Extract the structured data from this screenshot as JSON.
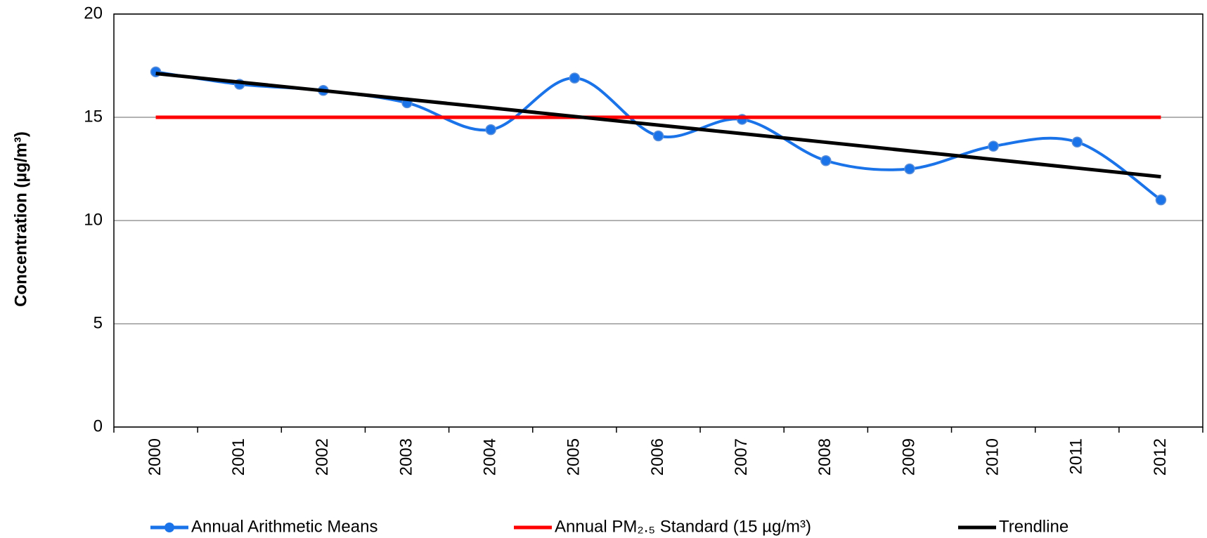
{
  "chart_data": {
    "type": "line",
    "y_label": "Concentration (µg/m³)",
    "categories": [
      "2000",
      "2001",
      "2002",
      "2003",
      "2004",
      "2005",
      "2006",
      "2007",
      "2008",
      "2009",
      "2010",
      "2011",
      "2012"
    ],
    "series": [
      {
        "name": "Annual Arithmetic Means",
        "color": "#1a73e8",
        "smooth": true,
        "markers": true,
        "values": [
          17.2,
          16.6,
          16.3,
          15.7,
          14.4,
          16.9,
          14.1,
          14.9,
          12.9,
          12.5,
          13.6,
          13.8,
          11.0
        ]
      },
      {
        "name": "Annual PM₂.₅ Standard (15 µg/m³)",
        "color": "#ff0000",
        "smooth": false,
        "markers": false,
        "values": [
          15,
          15,
          15,
          15,
          15,
          15,
          15,
          15,
          15,
          15,
          15,
          15,
          15
        ]
      },
      {
        "name": "Trendline",
        "color": "#000000",
        "smooth": false,
        "markers": false,
        "values": [
          17.12,
          16.7,
          16.29,
          15.87,
          15.46,
          15.04,
          14.62,
          14.21,
          13.79,
          13.37,
          12.96,
          12.54,
          12.12
        ]
      }
    ],
    "ylim": [
      0,
      20
    ],
    "yticks": [
      0,
      5,
      10,
      15,
      20
    ],
    "grid": true,
    "legend": "bottom"
  }
}
